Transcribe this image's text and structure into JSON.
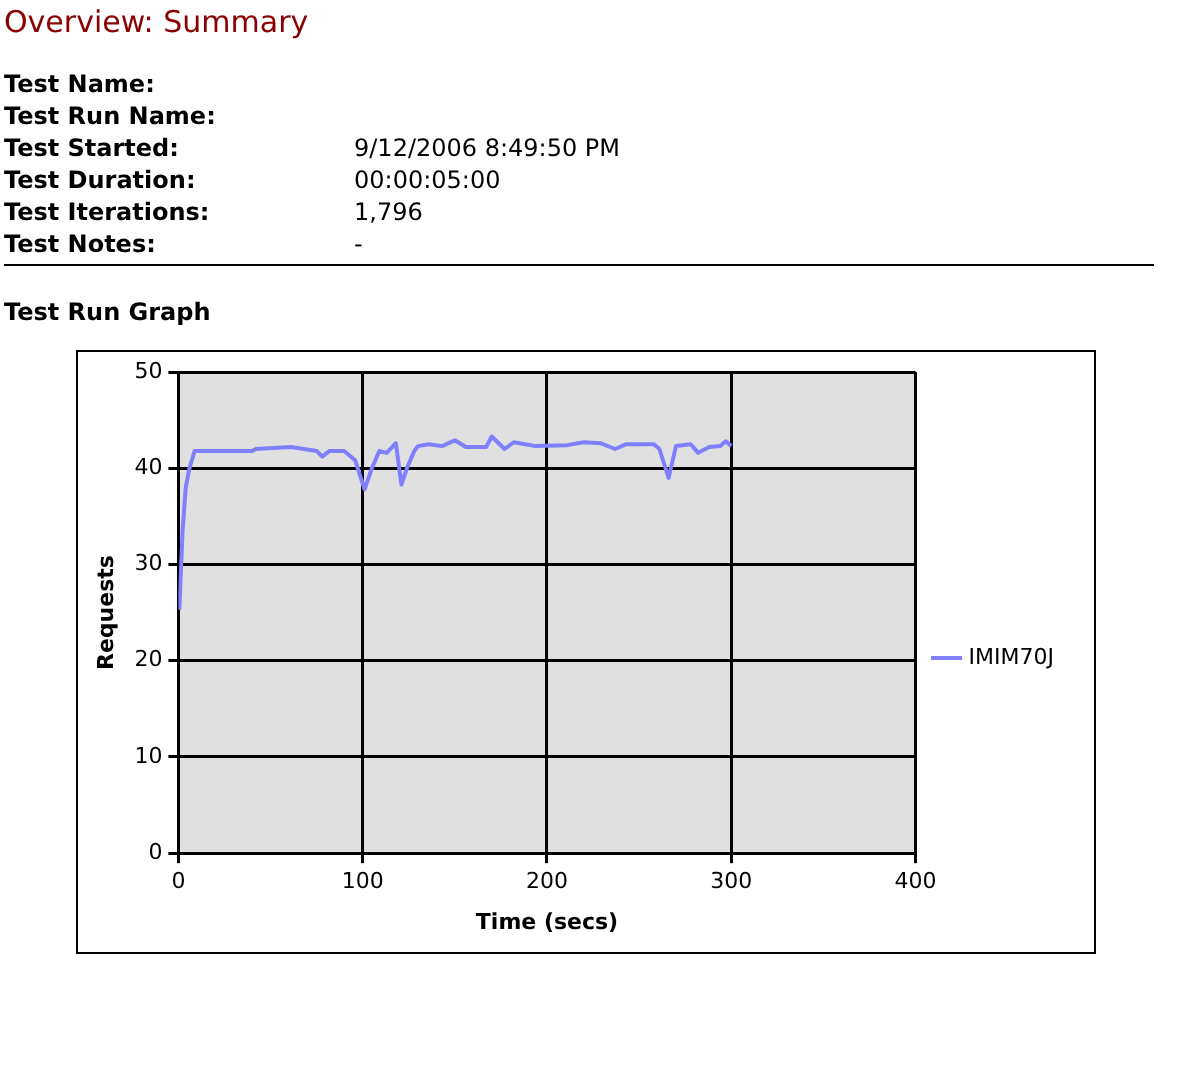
{
  "chart_data": {
    "type": "line",
    "title": "Overview: Summary",
    "annotations": [
      "Test Name:",
      "Test Run Name:",
      "Test Started: 9/12/2006 8:49:50 PM",
      "Test Duration: 00:00:05:00",
      "Test Iterations: 1,796",
      "Test Notes: -",
      "Test Run Graph"
    ],
    "xlabel": "Time (secs)",
    "ylabel": "Requests",
    "xlim": [
      0,
      400
    ],
    "xticks": [
      0,
      100,
      200,
      300,
      400
    ],
    "ylim": [
      0,
      50
    ],
    "yticks": [
      0,
      10,
      20,
      30,
      40,
      50
    ],
    "grid": true,
    "legend": "right",
    "marker": "none",
    "line_style": "solid",
    "series": [
      {
        "name": "IMIM70J",
        "color": "#8080ff",
        "x": [
          0.5,
          2.3,
          4,
          6,
          8.8,
          40,
          42,
          61,
          75,
          78,
          82,
          90,
          96,
          101,
          105,
          109,
          113,
          118,
          121,
          124,
          128,
          130,
          136,
          143,
          150,
          156,
          167,
          170,
          177,
          182,
          188,
          194,
          211,
          220,
          229,
          237,
          243,
          258,
          261,
          266,
          270,
          278,
          282,
          288,
          294,
          297,
          300
        ],
        "values": [
          25.3,
          33.6,
          38,
          40,
          41.8,
          41.8,
          42,
          42.2,
          41.8,
          41.2,
          41.8,
          41.8,
          40.8,
          37.8,
          40,
          41.8,
          41.6,
          42.6,
          38.3,
          40,
          41.8,
          42.3,
          42.5,
          42.3,
          42.9,
          42.2,
          42.2,
          43.3,
          42,
          42.7,
          42.5,
          42.3,
          42.4,
          42.7,
          42.6,
          42,
          42.5,
          42.5,
          42,
          39,
          42.3,
          42.5,
          41.6,
          42.2,
          42.3,
          42.8,
          42.3
        ]
      }
    ]
  }
}
